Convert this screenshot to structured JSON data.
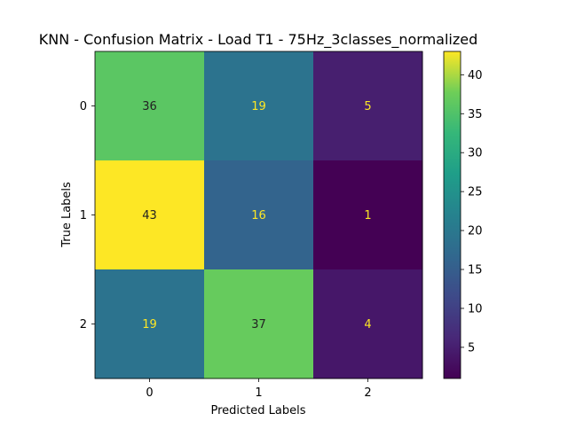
{
  "chart_data": {
    "type": "heatmap",
    "title": "KNN - Confusion Matrix - Load T1 - 75Hz_3classes_normalized",
    "xlabel": "Predicted Labels",
    "ylabel": "True Labels",
    "x_categories": [
      "0",
      "1",
      "2"
    ],
    "y_categories": [
      "0",
      "1",
      "2"
    ],
    "matrix": [
      [
        36,
        19,
        5
      ],
      [
        43,
        16,
        1
      ],
      [
        19,
        37,
        4
      ]
    ],
    "colormap": "viridis",
    "value_range": [
      1,
      43
    ],
    "colorbar_ticks": [
      "5",
      "10",
      "15",
      "20",
      "25",
      "30",
      "35",
      "40"
    ],
    "grid": false
  }
}
